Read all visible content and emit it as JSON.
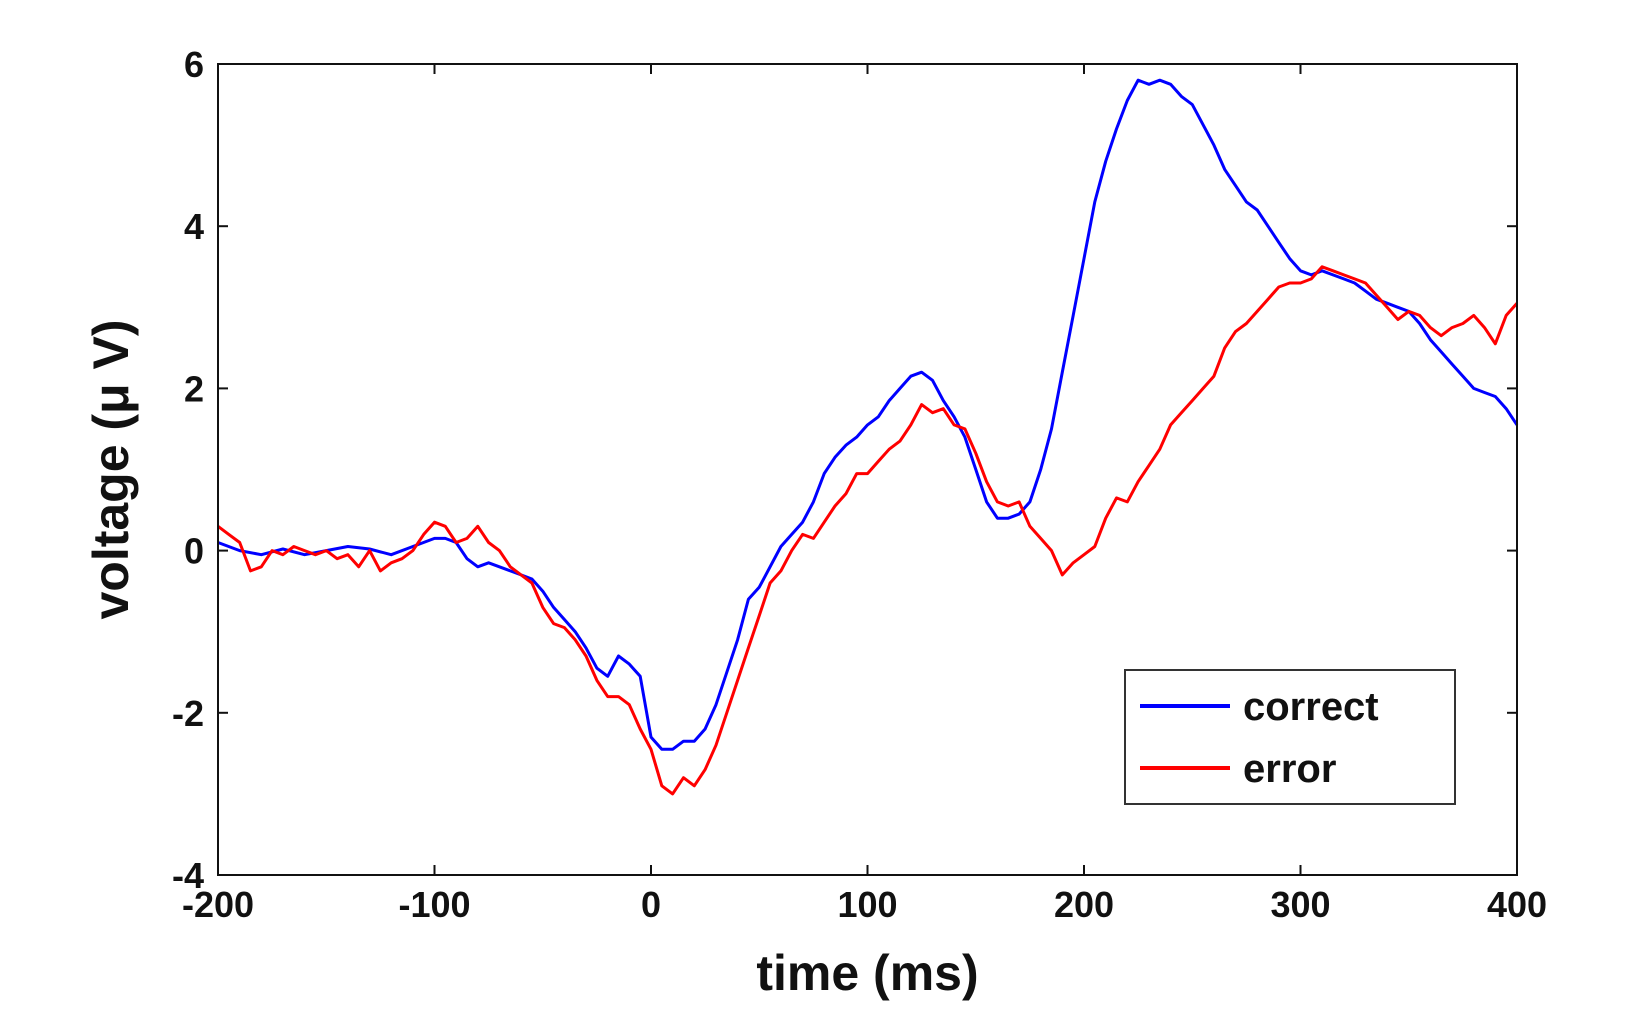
{
  "chart_data": {
    "type": "line",
    "xlabel": "time (ms)",
    "ylabel": "voltage (μ V)",
    "xlim": [
      -200,
      400
    ],
    "ylim": [
      -4,
      6
    ],
    "xticks": [
      -200,
      -100,
      0,
      100,
      200,
      300,
      400
    ],
    "yticks": [
      -4,
      -2,
      0,
      2,
      4,
      6
    ],
    "grid": false,
    "legend_position": "bottom-right",
    "series": [
      {
        "name": "correct",
        "color": "#0000ff",
        "x": [
          -200,
          -190,
          -180,
          -170,
          -160,
          -150,
          -140,
          -130,
          -120,
          -110,
          -100,
          -95,
          -90,
          -85,
          -80,
          -75,
          -70,
          -65,
          -60,
          -55,
          -50,
          -45,
          -40,
          -35,
          -30,
          -25,
          -20,
          -15,
          -10,
          -5,
          0,
          5,
          10,
          15,
          20,
          25,
          30,
          35,
          40,
          45,
          50,
          55,
          60,
          65,
          70,
          75,
          80,
          85,
          90,
          95,
          100,
          105,
          110,
          115,
          120,
          125,
          130,
          135,
          140,
          145,
          150,
          155,
          160,
          165,
          170,
          175,
          180,
          185,
          190,
          195,
          200,
          205,
          210,
          215,
          220,
          225,
          230,
          235,
          240,
          245,
          250,
          255,
          260,
          265,
          270,
          275,
          280,
          285,
          290,
          295,
          300,
          305,
          310,
          315,
          320,
          325,
          330,
          335,
          340,
          345,
          350,
          355,
          360,
          365,
          370,
          375,
          380,
          385,
          390,
          395,
          400
        ],
        "y": [
          0.1,
          0.0,
          -0.05,
          0.02,
          -0.05,
          0.0,
          0.05,
          0.02,
          -0.05,
          0.05,
          0.15,
          0.15,
          0.1,
          -0.1,
          -0.2,
          -0.15,
          -0.2,
          -0.25,
          -0.3,
          -0.35,
          -0.5,
          -0.7,
          -0.85,
          -1.0,
          -1.2,
          -1.45,
          -1.55,
          -1.3,
          -1.4,
          -1.55,
          -2.3,
          -2.45,
          -2.45,
          -2.35,
          -2.35,
          -2.2,
          -1.9,
          -1.5,
          -1.1,
          -0.6,
          -0.45,
          -0.2,
          0.05,
          0.2,
          0.35,
          0.6,
          0.95,
          1.15,
          1.3,
          1.4,
          1.55,
          1.65,
          1.85,
          2.0,
          2.15,
          2.2,
          2.1,
          1.85,
          1.65,
          1.4,
          1.0,
          0.6,
          0.4,
          0.4,
          0.45,
          0.6,
          1.0,
          1.5,
          2.2,
          2.9,
          3.6,
          4.3,
          4.8,
          5.2,
          5.55,
          5.8,
          5.75,
          5.8,
          5.75,
          5.6,
          5.5,
          5.25,
          5.0,
          4.7,
          4.5,
          4.3,
          4.2,
          4.0,
          3.8,
          3.6,
          3.45,
          3.4,
          3.45,
          3.4,
          3.35,
          3.3,
          3.2,
          3.1,
          3.05,
          3.0,
          2.95,
          2.8,
          2.6,
          2.45,
          2.3,
          2.15,
          2.0,
          1.95,
          1.9,
          1.75,
          1.55
        ]
      },
      {
        "name": "error",
        "color": "#ff0000",
        "x": [
          -200,
          -195,
          -190,
          -185,
          -180,
          -175,
          -170,
          -165,
          -160,
          -155,
          -150,
          -145,
          -140,
          -135,
          -130,
          -125,
          -120,
          -115,
          -110,
          -105,
          -100,
          -95,
          -90,
          -85,
          -80,
          -75,
          -70,
          -65,
          -60,
          -55,
          -50,
          -45,
          -40,
          -35,
          -30,
          -25,
          -20,
          -15,
          -10,
          -5,
          0,
          5,
          10,
          15,
          20,
          25,
          30,
          35,
          40,
          45,
          50,
          55,
          60,
          65,
          70,
          75,
          80,
          85,
          90,
          95,
          100,
          105,
          110,
          115,
          120,
          125,
          130,
          135,
          140,
          145,
          150,
          155,
          160,
          165,
          170,
          175,
          180,
          185,
          190,
          195,
          200,
          205,
          210,
          215,
          220,
          225,
          230,
          235,
          240,
          245,
          250,
          255,
          260,
          265,
          270,
          275,
          280,
          285,
          290,
          295,
          300,
          305,
          310,
          315,
          320,
          325,
          330,
          335,
          340,
          345,
          350,
          355,
          360,
          365,
          370,
          375,
          380,
          385,
          390,
          395,
          400
        ],
        "y": [
          0.3,
          0.2,
          0.1,
          -0.25,
          -0.2,
          0.0,
          -0.05,
          0.05,
          0.0,
          -0.05,
          0.0,
          -0.1,
          -0.05,
          -0.2,
          0.0,
          -0.25,
          -0.15,
          -0.1,
          0.0,
          0.2,
          0.35,
          0.3,
          0.1,
          0.15,
          0.3,
          0.1,
          0.0,
          -0.2,
          -0.3,
          -0.4,
          -0.7,
          -0.9,
          -0.95,
          -1.1,
          -1.3,
          -1.6,
          -1.8,
          -1.8,
          -1.9,
          -2.2,
          -2.45,
          -2.9,
          -3.0,
          -2.8,
          -2.9,
          -2.7,
          -2.4,
          -2.0,
          -1.6,
          -1.2,
          -0.8,
          -0.4,
          -0.25,
          0.0,
          0.2,
          0.15,
          0.35,
          0.55,
          0.7,
          0.95,
          0.95,
          1.1,
          1.25,
          1.35,
          1.55,
          1.8,
          1.7,
          1.75,
          1.55,
          1.5,
          1.2,
          0.85,
          0.6,
          0.55,
          0.6,
          0.3,
          0.15,
          0.0,
          -0.3,
          -0.15,
          -0.05,
          0.05,
          0.4,
          0.65,
          0.6,
          0.85,
          1.05,
          1.25,
          1.55,
          1.7,
          1.85,
          2.0,
          2.15,
          2.5,
          2.7,
          2.8,
          2.95,
          3.1,
          3.25,
          3.3,
          3.3,
          3.35,
          3.5,
          3.45,
          3.4,
          3.35,
          3.3,
          3.15,
          3.0,
          2.85,
          2.95,
          2.9,
          2.75,
          2.65,
          2.75,
          2.8,
          2.9,
          2.75,
          2.55,
          2.9,
          3.05
        ]
      }
    ]
  }
}
